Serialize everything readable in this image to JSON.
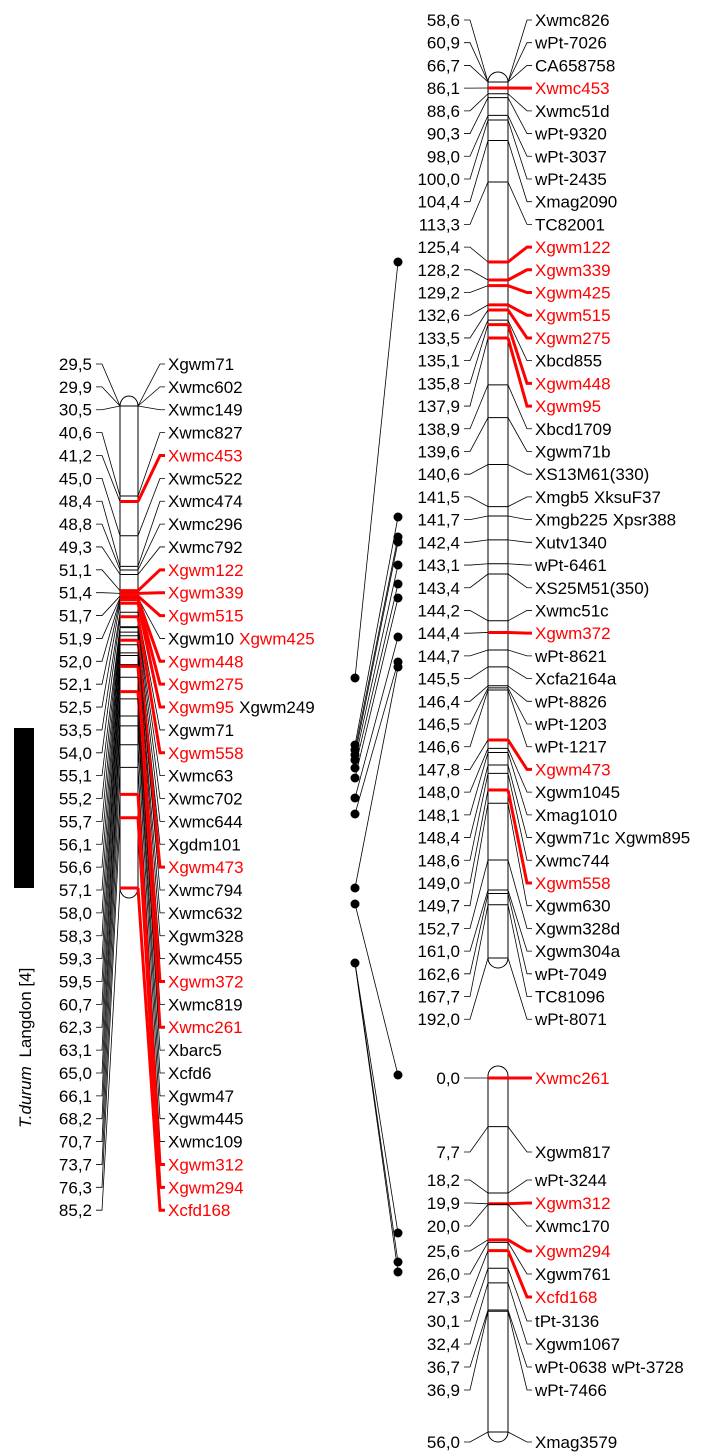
{
  "label": {
    "species": "T.durum",
    "cultivar": "Langdon",
    "ref": "[4]"
  },
  "colors": {
    "highlight": "#ff0000",
    "line": "#000000",
    "text": "#000000"
  },
  "maps": [
    {
      "id": "langdon",
      "markers": [
        {
          "pos": "29,5",
          "names": [
            "Xgwm71"
          ],
          "hl": false
        },
        {
          "pos": "29,9",
          "names": [
            "Xwmc602"
          ],
          "hl": false
        },
        {
          "pos": "30,5",
          "names": [
            "Xwmc149"
          ],
          "hl": false
        },
        {
          "pos": "40,6",
          "names": [
            "Xwmc827"
          ],
          "hl": false
        },
        {
          "pos": "41,2",
          "names": [
            "Xwmc453"
          ],
          "hl": true
        },
        {
          "pos": "45,0",
          "names": [
            "Xwmc522"
          ],
          "hl": false
        },
        {
          "pos": "48,4",
          "names": [
            "Xwmc474"
          ],
          "hl": false
        },
        {
          "pos": "48,8",
          "names": [
            "Xwmc296"
          ],
          "hl": false
        },
        {
          "pos": "49,3",
          "names": [
            "Xwmc792"
          ],
          "hl": false
        },
        {
          "pos": "51,1",
          "names": [
            "Xgwm122"
          ],
          "hl": true
        },
        {
          "pos": "51,4",
          "names": [
            "Xgwm339"
          ],
          "hl": true
        },
        {
          "pos": "51,7",
          "names": [
            "Xgwm515"
          ],
          "hl": true
        },
        {
          "pos": "51,9",
          "names": [
            "Xgwm10",
            "Xgwm425"
          ],
          "hl": false,
          "hl2": true
        },
        {
          "pos": "52,0",
          "names": [
            "Xgwm448"
          ],
          "hl": true
        },
        {
          "pos": "52,1",
          "names": [
            "Xgwm275"
          ],
          "hl": true
        },
        {
          "pos": "52,5",
          "names": [
            "Xgwm95",
            "Xgwm249"
          ],
          "hl": true,
          "hl2": false
        },
        {
          "pos": "53,5",
          "names": [
            "Xgwm71"
          ],
          "hl": false
        },
        {
          "pos": "54,0",
          "names": [
            "Xgwm558"
          ],
          "hl": true
        },
        {
          "pos": "55,1",
          "names": [
            "Xwmc63"
          ],
          "hl": false
        },
        {
          "pos": "55,2",
          "names": [
            "Xwmc702"
          ],
          "hl": false
        },
        {
          "pos": "55,7",
          "names": [
            "Xwmc644"
          ],
          "hl": false
        },
        {
          "pos": "56,1",
          "names": [
            "Xgdm101"
          ],
          "hl": false
        },
        {
          "pos": "56,6",
          "names": [
            "Xgwm473"
          ],
          "hl": true
        },
        {
          "pos": "57,1",
          "names": [
            "Xwmc794"
          ],
          "hl": false
        },
        {
          "pos": "58,0",
          "names": [
            "Xwmc632"
          ],
          "hl": false
        },
        {
          "pos": "58,3",
          "names": [
            "Xgwm328"
          ],
          "hl": false
        },
        {
          "pos": "59,3",
          "names": [
            "Xwmc455"
          ],
          "hl": false
        },
        {
          "pos": "59,5",
          "names": [
            "Xgwm372"
          ],
          "hl": true
        },
        {
          "pos": "60,7",
          "names": [
            "Xwmc819"
          ],
          "hl": false
        },
        {
          "pos": "62,3",
          "names": [
            "Xwmc261"
          ],
          "hl": true
        },
        {
          "pos": "63,1",
          "names": [
            "Xbarc5"
          ],
          "hl": false
        },
        {
          "pos": "65,0",
          "names": [
            "Xcfd6"
          ],
          "hl": false
        },
        {
          "pos": "66,1",
          "names": [
            "Xgwm47"
          ],
          "hl": false
        },
        {
          "pos": "68,2",
          "names": [
            "Xgwm445"
          ],
          "hl": false
        },
        {
          "pos": "70,7",
          "names": [
            "Xwmc109"
          ],
          "hl": false
        },
        {
          "pos": "73,7",
          "names": [
            "Xgwm312"
          ],
          "hl": true
        },
        {
          "pos": "76,3",
          "names": [
            "Xgwm294"
          ],
          "hl": true
        },
        {
          "pos": "85,2",
          "names": [
            "Xcfd168"
          ],
          "hl": true
        }
      ]
    },
    {
      "id": "consensus-upper",
      "markers": [
        {
          "pos": "58,6",
          "names": [
            "Xwmc826"
          ],
          "hl": false
        },
        {
          "pos": "60,9",
          "names": [
            "wPt-7026"
          ],
          "hl": false
        },
        {
          "pos": "66,7",
          "names": [
            "CA658758"
          ],
          "hl": false
        },
        {
          "pos": "86,1",
          "names": [
            "Xwmc453"
          ],
          "hl": true
        },
        {
          "pos": "88,6",
          "names": [
            "Xwmc51d"
          ],
          "hl": false
        },
        {
          "pos": "90,3",
          "names": [
            "wPt-9320"
          ],
          "hl": false
        },
        {
          "pos": "98,0",
          "names": [
            "wPt-3037"
          ],
          "hl": false
        },
        {
          "pos": "100,0",
          "names": [
            "wPt-2435"
          ],
          "hl": false
        },
        {
          "pos": "104,4",
          "names": [
            "Xmag2090"
          ],
          "hl": false
        },
        {
          "pos": "113,3",
          "names": [
            "TC82001"
          ],
          "hl": false
        },
        {
          "pos": "125,4",
          "names": [
            "Xgwm122"
          ],
          "hl": true
        },
        {
          "pos": "128,2",
          "names": [
            "Xgwm339"
          ],
          "hl": true
        },
        {
          "pos": "129,2",
          "names": [
            "Xgwm425"
          ],
          "hl": true
        },
        {
          "pos": "132,6",
          "names": [
            "Xgwm515"
          ],
          "hl": true
        },
        {
          "pos": "133,5",
          "names": [
            "Xgwm275"
          ],
          "hl": true
        },
        {
          "pos": "135,1",
          "names": [
            "Xbcd855"
          ],
          "hl": false
        },
        {
          "pos": "135,8",
          "names": [
            "Xgwm448"
          ],
          "hl": true
        },
        {
          "pos": "137,9",
          "names": [
            "Xgwm95"
          ],
          "hl": true
        },
        {
          "pos": "138,9",
          "names": [
            "Xbcd1709"
          ],
          "hl": false
        },
        {
          "pos": "139,6",
          "names": [
            "Xgwm71b"
          ],
          "hl": false
        },
        {
          "pos": "140,6",
          "names": [
            "XS13M61(330)"
          ],
          "hl": false
        },
        {
          "pos": "141,5",
          "names": [
            "Xmgb5",
            "XksuF37"
          ],
          "hl": false,
          "hl2": false
        },
        {
          "pos": "141,7",
          "names": [
            "Xmgb225",
            "Xpsr388"
          ],
          "hl": false,
          "hl2": false
        },
        {
          "pos": "142,4",
          "names": [
            "Xutv1340"
          ],
          "hl": false
        },
        {
          "pos": "143,1",
          "names": [
            "wPt-6461"
          ],
          "hl": false
        },
        {
          "pos": "143,4",
          "names": [
            "XS25M51(350)"
          ],
          "hl": false
        },
        {
          "pos": "144,2",
          "names": [
            "Xwmc51c"
          ],
          "hl": false
        },
        {
          "pos": "144,4",
          "names": [
            "Xgwm372"
          ],
          "hl": true
        },
        {
          "pos": "144,7",
          "names": [
            "wPt-8621"
          ],
          "hl": false
        },
        {
          "pos": "145,5",
          "names": [
            "Xcfa2164a"
          ],
          "hl": false
        },
        {
          "pos": "146,4",
          "names": [
            "wPt-8826"
          ],
          "hl": false
        },
        {
          "pos": "146,5",
          "names": [
            "wPt-1203"
          ],
          "hl": false
        },
        {
          "pos": "146,6",
          "names": [
            "wPt-1217"
          ],
          "hl": false
        },
        {
          "pos": "147,8",
          "names": [
            "Xgwm473"
          ],
          "hl": true
        },
        {
          "pos": "148,0",
          "names": [
            "Xgwm1045"
          ],
          "hl": false
        },
        {
          "pos": "148,1",
          "names": [
            "Xmag1010"
          ],
          "hl": false
        },
        {
          "pos": "148,4",
          "names": [
            "Xgwm71c",
            "Xgwm895"
          ],
          "hl": false,
          "hl2": false
        },
        {
          "pos": "148,6",
          "names": [
            "Xwmc744"
          ],
          "hl": false
        },
        {
          "pos": "149,0",
          "names": [
            "Xgwm558"
          ],
          "hl": true
        },
        {
          "pos": "149,7",
          "names": [
            "Xgwm630"
          ],
          "hl": false
        },
        {
          "pos": "152,7",
          "names": [
            "Xgwm328d"
          ],
          "hl": false
        },
        {
          "pos": "161,0",
          "names": [
            "Xgwm304a"
          ],
          "hl": false
        },
        {
          "pos": "162,6",
          "names": [
            "wPt-7049"
          ],
          "hl": false
        },
        {
          "pos": "167,7",
          "names": [
            "TC81096"
          ],
          "hl": false
        },
        {
          "pos": "192,0",
          "names": [
            "wPt-8071"
          ],
          "hl": false
        }
      ]
    },
    {
      "id": "consensus-lower",
      "markers": [
        {
          "pos": "0,0",
          "names": [
            "Xwmc261"
          ],
          "hl": true
        },
        {
          "pos": "7,7",
          "names": [
            "Xgwm817"
          ],
          "hl": false
        },
        {
          "pos": "18,2",
          "names": [
            "wPt-3244"
          ],
          "hl": false
        },
        {
          "pos": "19,9",
          "names": [
            "Xgwm312"
          ],
          "hl": true
        },
        {
          "pos": "20,0",
          "names": [
            "Xwmc170"
          ],
          "hl": false
        },
        {
          "pos": "25,6",
          "names": [
            "Xgwm294"
          ],
          "hl": true
        },
        {
          "pos": "26,0",
          "names": [
            "Xgwm761"
          ],
          "hl": false
        },
        {
          "pos": "27,3",
          "names": [
            "Xcfd168"
          ],
          "hl": true
        },
        {
          "pos": "30,1",
          "names": [
            "tPt-3136"
          ],
          "hl": false
        },
        {
          "pos": "32,4",
          "names": [
            "Xgwm1067"
          ],
          "hl": false
        },
        {
          "pos": "36,7",
          "names": [
            "wPt-0638",
            "wPt-3728"
          ],
          "hl": false,
          "hl2": false
        },
        {
          "pos": "36,9",
          "names": [
            "wPt-7466"
          ],
          "hl": false
        },
        {
          "pos": "56,0",
          "names": [
            "Xmag3579"
          ],
          "hl": false
        }
      ]
    }
  ]
}
